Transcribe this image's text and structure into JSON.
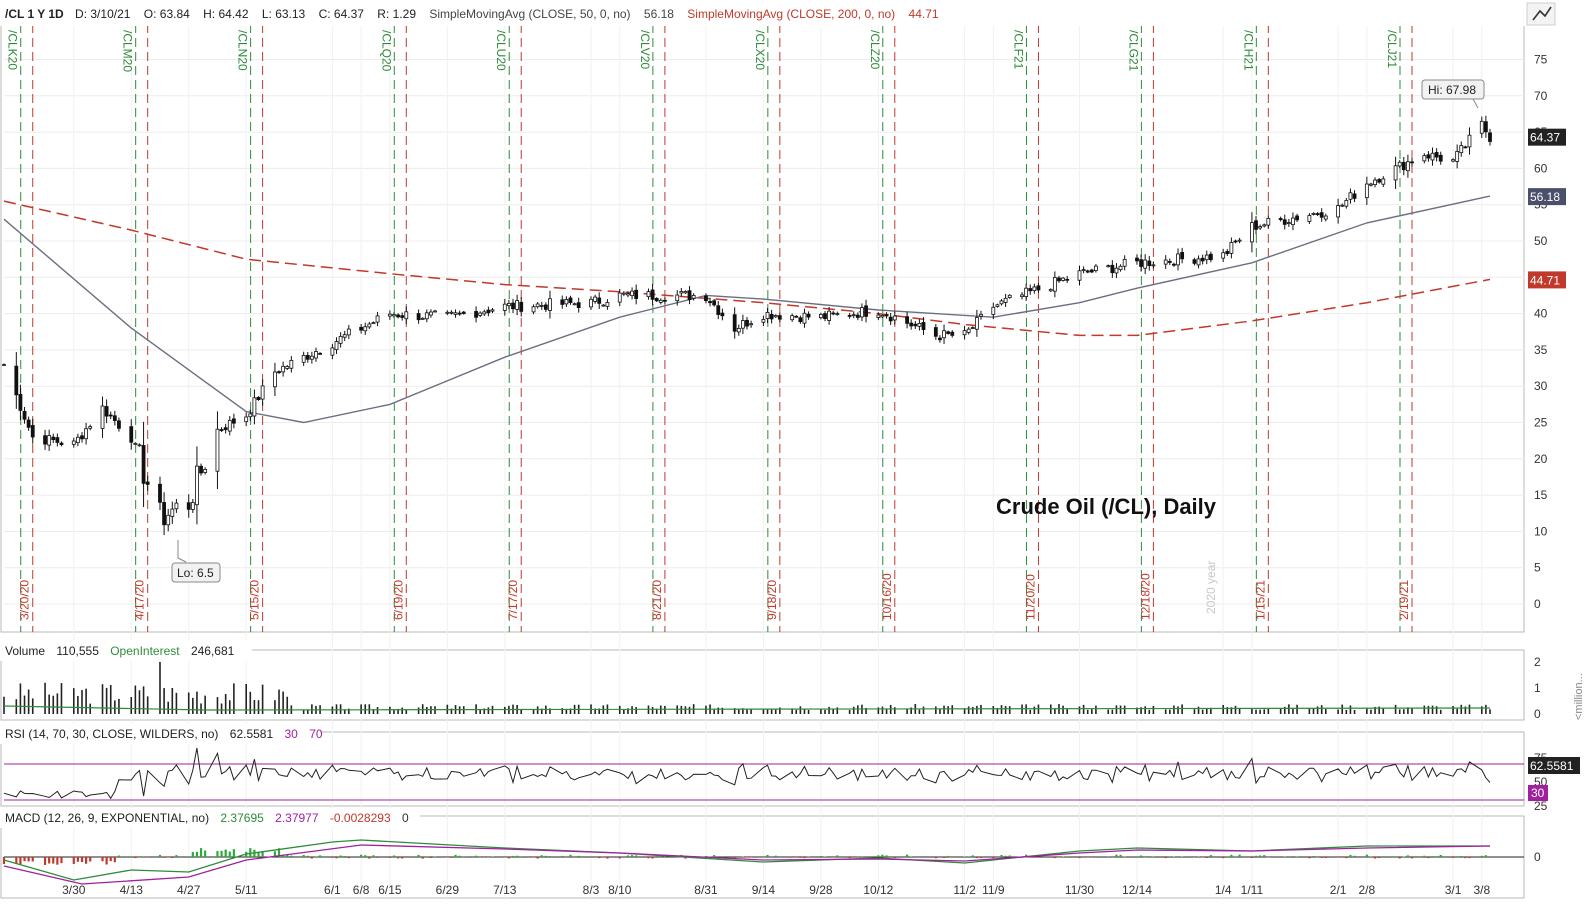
{
  "header": {
    "symbol": "/CL 1 Y 1D",
    "date": "D: 3/10/21",
    "open": "O: 63.84",
    "high": "H: 64.42",
    "low": "L: 63.13",
    "close": "C: 64.37",
    "range": "R: 1.29",
    "sma50_label": "SimpleMovingAvg (CLOSE, 50, 0, no)",
    "sma50_value": "56.18",
    "sma200_label": "SimpleMovingAvg (CLOSE, 200, 0, no)",
    "sma200_value": "44.71"
  },
  "annotation": "Crude Oil (/CL), Daily",
  "year_watermark": "2020 year",
  "hi_label": "Hi: 67.98",
  "lo_label": "Lo: 6.5",
  "volume_panel": {
    "title": "Volume",
    "value": "110,555",
    "oi_title": "OpenInterest",
    "oi_value": "246,681",
    "unit": "<million...",
    "ticks": [
      "2",
      "1",
      "0"
    ]
  },
  "rsi_panel": {
    "title": "RSI (14, 70, 30, CLOSE, WILDERS, no)",
    "value": "62.5581",
    "os": "30",
    "ob": "70",
    "ticks": [
      "75",
      "50",
      "25"
    ]
  },
  "macd_panel": {
    "title": "MACD (12, 26, 9, EXPONENTIAL, no)",
    "v1": "2.37695",
    "v2": "2.37977",
    "v3": "-0.0028293",
    "v4": "0",
    "ticks": [
      "0"
    ]
  },
  "colors": {
    "candle": "#111111",
    "sma50": "#6c6f80",
    "sma200": "#c0392b",
    "green": "#2e8b3a",
    "red": "#c0392b",
    "purple": "#a020a0"
  },
  "chart_data": {
    "type": "candlestick",
    "title": "",
    "ylim": [
      -5,
      80
    ],
    "yticks": [
      0,
      5,
      10,
      15,
      20,
      25,
      30,
      35,
      40,
      45,
      50,
      55,
      60,
      65,
      70,
      75
    ],
    "x_labels": [
      "3/30",
      "4/13",
      "4/27",
      "5/11",
      "6/1",
      "6/8",
      "6/15",
      "6/29",
      "7/13",
      "8/3",
      "8/10",
      "8/31",
      "9/14",
      "9/28",
      "10/12",
      "11/2",
      "11/9",
      "11/30",
      "12/14",
      "1/4",
      "1/11",
      "2/1",
      "2/8",
      "3/1",
      "3/8"
    ],
    "price_anchors": [
      {
        "x": "3/13/20",
        "y": 33
      },
      {
        "x": "3/20/20",
        "y": 23
      },
      {
        "x": "3/30/20",
        "y": 22
      },
      {
        "x": "4/6/20",
        "y": 27
      },
      {
        "x": "4/13/20",
        "y": 23
      },
      {
        "x": "4/20/20",
        "y": 12
      },
      {
        "x": "4/27/20",
        "y": 14
      },
      {
        "x": "5/4/20",
        "y": 24
      },
      {
        "x": "5/11/20",
        "y": 26
      },
      {
        "x": "5/18/20",
        "y": 32
      },
      {
        "x": "6/1/20",
        "y": 36
      },
      {
        "x": "6/8/20",
        "y": 38
      },
      {
        "x": "6/15/20",
        "y": 40
      },
      {
        "x": "6/29/20",
        "y": 39.5
      },
      {
        "x": "7/13/20",
        "y": 41
      },
      {
        "x": "8/3/20",
        "y": 41.5
      },
      {
        "x": "8/10/20",
        "y": 42.5
      },
      {
        "x": "8/31/20",
        "y": 42.5
      },
      {
        "x": "9/7/20",
        "y": 38
      },
      {
        "x": "9/14/20",
        "y": 40
      },
      {
        "x": "9/28/20",
        "y": 39.5
      },
      {
        "x": "10/12/20",
        "y": 40.5
      },
      {
        "x": "10/26/20",
        "y": 37
      },
      {
        "x": "11/2/20",
        "y": 37
      },
      {
        "x": "11/9/20",
        "y": 41
      },
      {
        "x": "11/30/20",
        "y": 45.5
      },
      {
        "x": "12/14/20",
        "y": 47
      },
      {
        "x": "1/4/21",
        "y": 48
      },
      {
        "x": "1/11/21",
        "y": 52
      },
      {
        "x": "2/1/21",
        "y": 54.5
      },
      {
        "x": "2/8/21",
        "y": 58
      },
      {
        "x": "2/22/21",
        "y": 62
      },
      {
        "x": "3/1/21",
        "y": 61
      },
      {
        "x": "3/8/21",
        "y": 66
      },
      {
        "x": "3/10/21",
        "y": 64.37
      }
    ],
    "hi": 67.98,
    "lo": 6.5,
    "sma50_end": 56.18,
    "sma200_end": 44.71,
    "last_close": 64.37,
    "rollovers": [
      {
        "symbol": "/CLK20",
        "date": "3/20/20"
      },
      {
        "symbol": "/CLM20",
        "date": "4/17/20"
      },
      {
        "symbol": "/CLN20",
        "date": "5/15/20"
      },
      {
        "symbol": "/CLQ20",
        "date": "6/19/20"
      },
      {
        "symbol": "/CLU20",
        "date": "7/17/20"
      },
      {
        "symbol": "/CLV20",
        "date": "8/21/20"
      },
      {
        "symbol": "/CLX20",
        "date": "9/18/20"
      },
      {
        "symbol": "/CLZ20",
        "date": "10/16/20"
      },
      {
        "symbol": "/CLF21",
        "date": "11/20/20"
      },
      {
        "symbol": "/CLG21",
        "date": "12/18/20"
      },
      {
        "symbol": "/CLH21",
        "date": "1/15/21"
      },
      {
        "symbol": "/CLJ21",
        "date": "2/19/21"
      }
    ]
  }
}
